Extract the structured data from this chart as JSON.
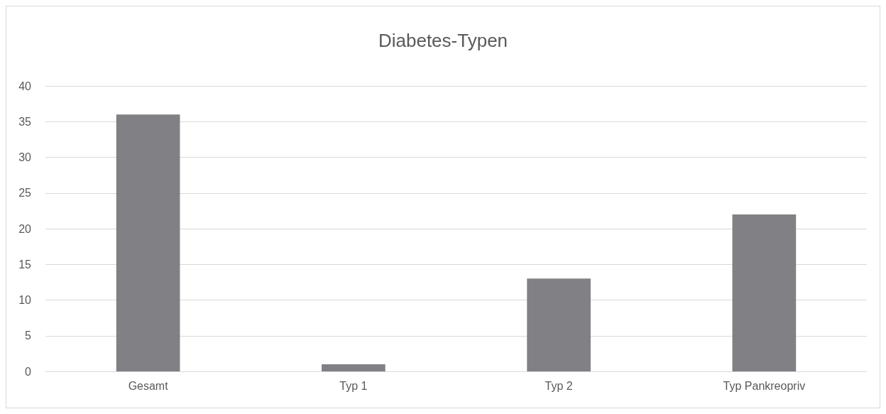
{
  "chart_data": {
    "type": "bar",
    "title": "Diabetes-Typen",
    "categories": [
      "Gesamt",
      "Typ 1",
      "Typ 2",
      "Typ Pankreopriv"
    ],
    "values": [
      36,
      1,
      13,
      22
    ],
    "color": "#808085",
    "ylim": [
      0,
      40
    ],
    "yticks": [
      0,
      5,
      10,
      15,
      20,
      25,
      30,
      35,
      40
    ],
    "grid": "y"
  }
}
